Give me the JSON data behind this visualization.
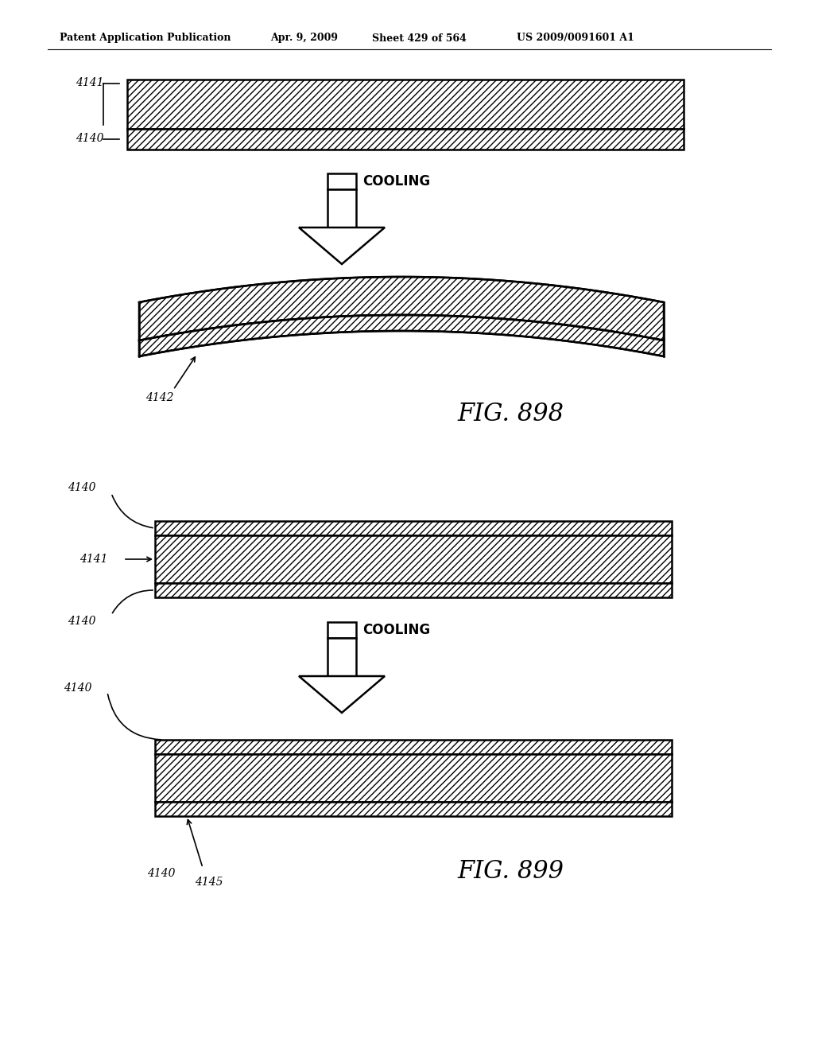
{
  "bg_color": "#ffffff",
  "header_text": "Patent Application Publication",
  "header_date": "Apr. 9, 2009",
  "header_sheet": "Sheet 429 of 564",
  "header_patent": "US 2009/0091601 A1",
  "fig898_label": "FIG. 898",
  "fig899_label": "FIG. 899",
  "cooling_label": "COOLING",
  "label_4141_top": "4141",
  "label_4140_top": "4140",
  "label_4142": "4142",
  "label_4140_mid1": "4140",
  "label_4140_mid2": "4140",
  "label_4141_mid": "4141",
  "label_4140_bot1": "4140",
  "label_4140_bot2": "4140",
  "label_4145": "4145"
}
